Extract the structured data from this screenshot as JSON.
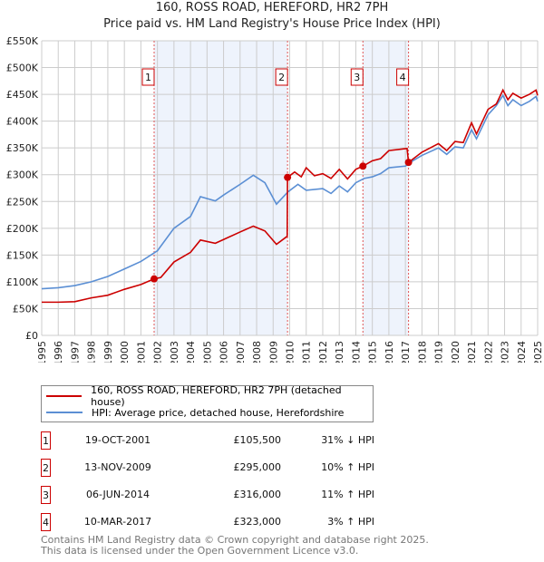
{
  "chart_data": {
    "type": "line",
    "title": "160, ROSS ROAD, HEREFORD, HR2 7PH",
    "subtitle": "Price paid vs. HM Land Registry's House Price Index (HPI)",
    "xlim": [
      1995,
      2025
    ],
    "ylim": [
      0,
      550000
    ],
    "x_ticks": [
      "1995",
      "1996",
      "1997",
      "1998",
      "1999",
      "2000",
      "2001",
      "2002",
      "2003",
      "2004",
      "2005",
      "2006",
      "2007",
      "2008",
      "2009",
      "2010",
      "2011",
      "2012",
      "2013",
      "2014",
      "2015",
      "2016",
      "2017",
      "2018",
      "2019",
      "2020",
      "2021",
      "2022",
      "2023",
      "2024",
      "2025"
    ],
    "y_ticks": [
      {
        "v": 0,
        "label": "£0"
      },
      {
        "v": 50000,
        "label": "£50K"
      },
      {
        "v": 100000,
        "label": "£100K"
      },
      {
        "v": 150000,
        "label": "£150K"
      },
      {
        "v": 200000,
        "label": "£200K"
      },
      {
        "v": 250000,
        "label": "£250K"
      },
      {
        "v": 300000,
        "label": "£300K"
      },
      {
        "v": 350000,
        "label": "£350K"
      },
      {
        "v": 400000,
        "label": "£400K"
      },
      {
        "v": 450000,
        "label": "£450K"
      },
      {
        "v": 500000,
        "label": "£500K"
      },
      {
        "v": 550000,
        "label": "£550K"
      }
    ],
    "grid": true,
    "series": [
      {
        "name": "160, ROSS ROAD, HEREFORD, HR2 7PH (detached house)",
        "color": "#cc0000",
        "x": [
          1995,
          1996,
          1997,
          1998,
          1999,
          2000,
          2001,
          2001.8,
          2002.2,
          2003,
          2004,
          2004.6,
          2005.5,
          2006,
          2007,
          2007.8,
          2008.5,
          2009.2,
          2009.85,
          2009.87,
          2010.3,
          2010.7,
          2011,
          2011.5,
          2012,
          2012.5,
          2013,
          2013.5,
          2014,
          2014.43,
          2015,
          2015.5,
          2016,
          2017.1,
          2017.19,
          2018,
          2019,
          2019.5,
          2020,
          2020.5,
          2021,
          2021.3,
          2022,
          2022.5,
          2022.9,
          2023.2,
          2023.5,
          2024,
          2024.5,
          2024.9,
          2025
        ],
        "y": [
          62000,
          62000,
          63000,
          70000,
          75000,
          86000,
          95000,
          105500,
          108000,
          137000,
          155000,
          178000,
          172000,
          179000,
          193000,
          204000,
          195000,
          170000,
          185000,
          295000,
          305000,
          296000,
          313000,
          298000,
          302000,
          293000,
          310000,
          292000,
          310000,
          316000,
          326000,
          330000,
          345000,
          349000,
          323000,
          342000,
          358000,
          345000,
          362000,
          360000,
          397000,
          376000,
          422000,
          432000,
          458000,
          440000,
          452000,
          443000,
          450000,
          458000,
          448000
        ]
      },
      {
        "name": "HPI: Average price, detached house, Herefordshire",
        "color": "#5b8fd4",
        "x": [
          1995,
          1996,
          1997,
          1998,
          1999,
          2000,
          2001,
          2002,
          2003,
          2004,
          2004.6,
          2005.5,
          2006,
          2007,
          2007.8,
          2008.5,
          2009.2,
          2009.9,
          2010.5,
          2011,
          2012,
          2012.5,
          2013,
          2013.5,
          2014,
          2014.5,
          2015,
          2015.5,
          2016,
          2017,
          2017.5,
          2018,
          2019,
          2019.5,
          2020,
          2020.5,
          2021,
          2021.3,
          2022,
          2022.5,
          2022.9,
          2023.2,
          2023.5,
          2024,
          2024.5,
          2024.9,
          2025
        ],
        "y": [
          87000,
          89000,
          93000,
          100000,
          110000,
          124000,
          138000,
          158000,
          200000,
          222000,
          259000,
          251000,
          262000,
          282000,
          299000,
          285000,
          245000,
          268000,
          282000,
          271000,
          274000,
          265000,
          279000,
          268000,
          285000,
          293000,
          296000,
          302000,
          313000,
          316000,
          327000,
          336000,
          350000,
          338000,
          352000,
          350000,
          384000,
          367000,
          412000,
          429000,
          448000,
          429000,
          440000,
          429000,
          437000,
          446000,
          437000
        ]
      }
    ],
    "sales": [
      {
        "n": "1",
        "x": 2001.8,
        "y": 105500,
        "date": "19-OCT-2001",
        "price": "£105,500",
        "hpi": "31% ↓ HPI"
      },
      {
        "n": "2",
        "x": 2009.87,
        "y": 295000,
        "date": "13-NOV-2009",
        "price": "£295,000",
        "hpi": "10% ↑ HPI"
      },
      {
        "n": "3",
        "x": 2014.43,
        "y": 316000,
        "date": "06-JUN-2014",
        "price": "£316,000",
        "hpi": "11% ↑ HPI"
      },
      {
        "n": "4",
        "x": 2017.19,
        "y": 323000,
        "date": "10-MAR-2017",
        "price": "£323,000",
        "hpi": "3% ↑ HPI"
      }
    ],
    "legend": "below"
  },
  "footer": {
    "line1": "Contains HM Land Registry data © Crown copyright and database right 2025.",
    "line2": "This data is licensed under the Open Government Licence v3.0."
  }
}
